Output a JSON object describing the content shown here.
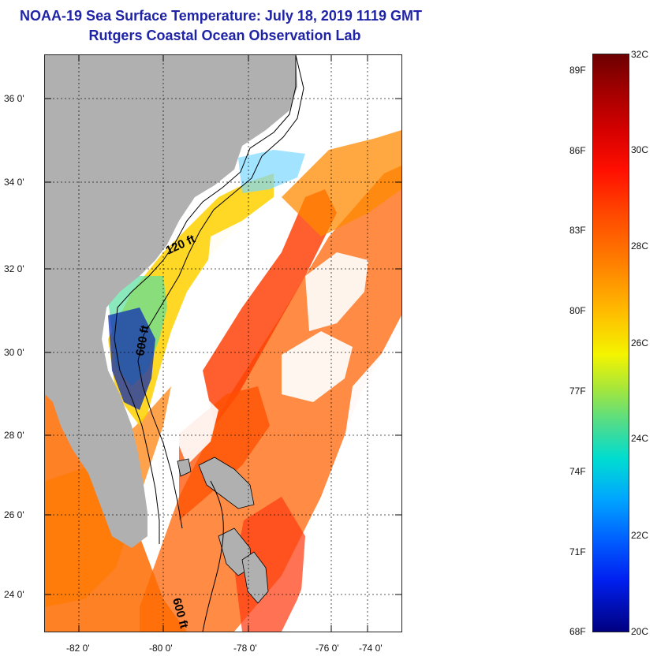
{
  "titles": {
    "line1": "NOAA-19 Sea Surface Temperature:  July 18, 2019 1119 GMT",
    "line2": "Rutgers Coastal Ocean Observation Lab"
  },
  "map": {
    "y_ticks": [
      "36 0'",
      "34 0'",
      "32 0'",
      "30 0'",
      "28 0'",
      "26 0'",
      "24 0'"
    ],
    "x_ticks": [
      "-82 0'",
      "-80 0'",
      "-78 0'",
      "-76 0'",
      "-74 0'"
    ],
    "isobaths": [
      "120 ft",
      "600 ft",
      "600 ft"
    ],
    "land_color": "#b0b0b0",
    "cloud_color": "#ffffff",
    "contour_color": "#000000"
  },
  "colorbar": {
    "fahrenheit": [
      "89F",
      "86F",
      "83F",
      "80F",
      "77F",
      "74F",
      "71F",
      "68F"
    ],
    "celsius": [
      "32C",
      "30C",
      "28C",
      "26C",
      "24C",
      "22C",
      "20C"
    ]
  }
}
